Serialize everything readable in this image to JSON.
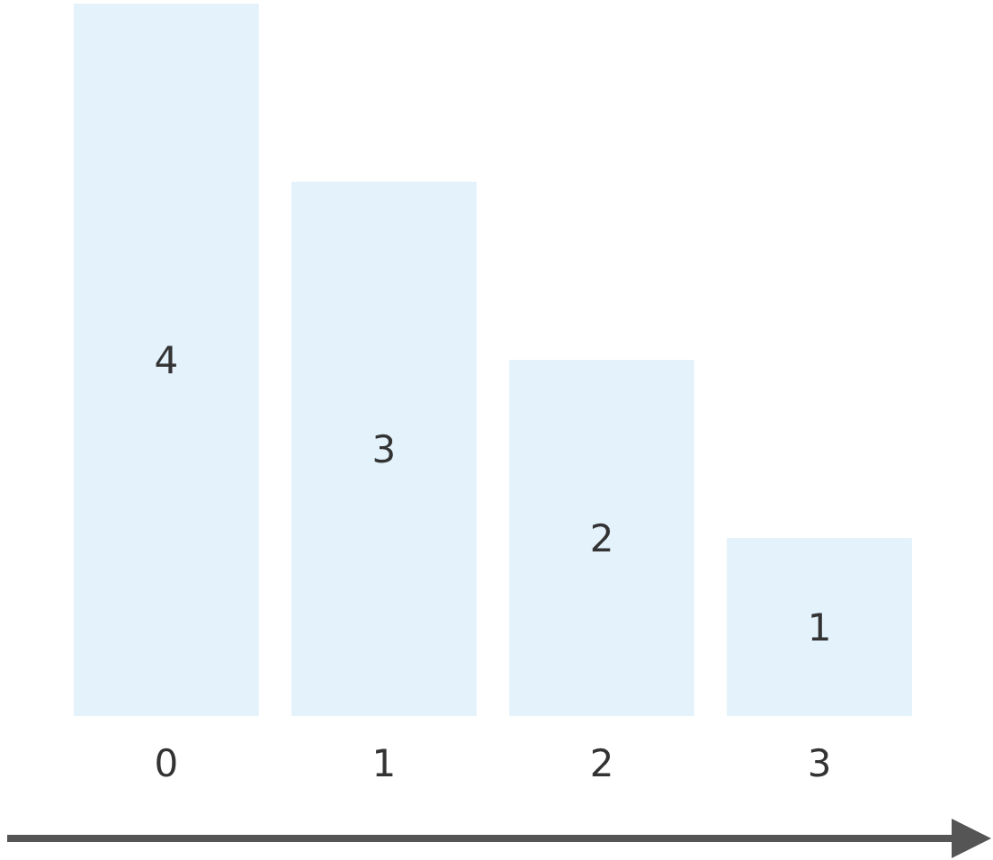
{
  "chart_data": {
    "type": "bar",
    "categories": [
      "0",
      "1",
      "2",
      "3"
    ],
    "values": [
      4,
      3,
      2,
      1
    ],
    "color": "#e3f2fb",
    "data_labels": true
  }
}
